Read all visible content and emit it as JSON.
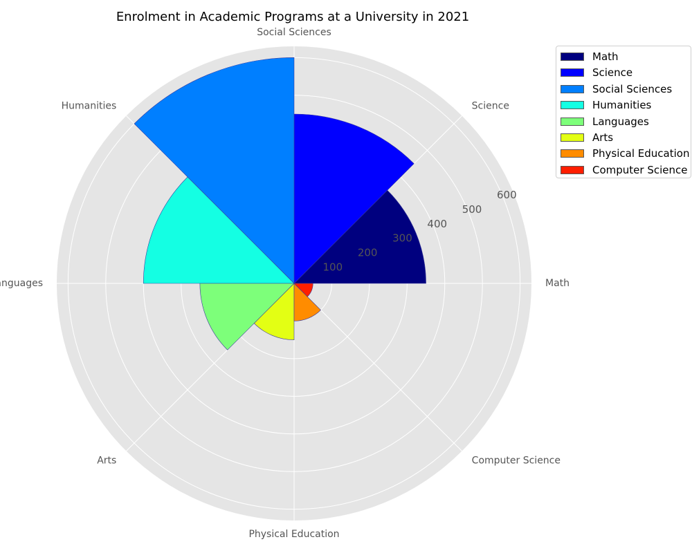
{
  "chart_data": {
    "type": "polar-bar",
    "title": "Enrolment in Academic Programs at a University in 2021",
    "categories": [
      "Math",
      "Science",
      "Social Sciences",
      "Humanities",
      "Languages",
      "Arts",
      "Physical Education",
      "Computer Science"
    ],
    "values": [
      350,
      450,
      600,
      400,
      250,
      150,
      100,
      50
    ],
    "colors": [
      "#00007f",
      "#0000ff",
      "#007fff",
      "#14ffe3",
      "#7dff7a",
      "#e3ff14",
      "#ff8c00",
      "#ff1e00"
    ],
    "radial_ticks": [
      100,
      200,
      300,
      400,
      500,
      600
    ],
    "rlim": [
      0,
      630
    ],
    "legend": {
      "position": "upper-right, outside plot"
    },
    "grid": true
  }
}
